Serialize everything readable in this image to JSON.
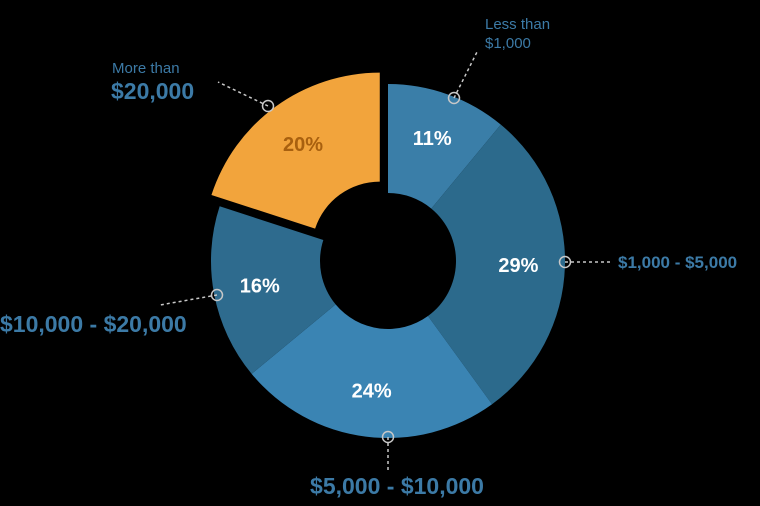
{
  "chart_data": {
    "type": "pie",
    "variant": "donut",
    "categories": [
      "Less than $1,000",
      "$1,000 - $5,000",
      "$5,000 - $10,000",
      "$10,000 - $20,000",
      "More than $20,000"
    ],
    "values": [
      11,
      29,
      24,
      16,
      20
    ],
    "value_labels": [
      "11%",
      "29%",
      "24%",
      "16%",
      "20%"
    ],
    "exploded": [
      false,
      false,
      false,
      false,
      true
    ],
    "colors": [
      "#3a7ea8",
      "#2c6a8c",
      "#3a84b3",
      "#2e6b8e",
      "#f2a43c"
    ],
    "label_colors": [
      "#ffffff",
      "#ffffff",
      "#ffffff",
      "#ffffff",
      "#a8600f"
    ],
    "callout_color": "#3c7aa6",
    "background": "#000000"
  },
  "labels": {
    "lt1000_line1": "Less than",
    "lt1000_line2": "$1,000",
    "r1000_5000": "$1,000 - $5,000",
    "r5000_10000": "$5,000 - $10,000",
    "r10000_20000": "$10,000 - $20,000",
    "gt20000_line1": "More than",
    "gt20000_line2": "$20,000"
  }
}
